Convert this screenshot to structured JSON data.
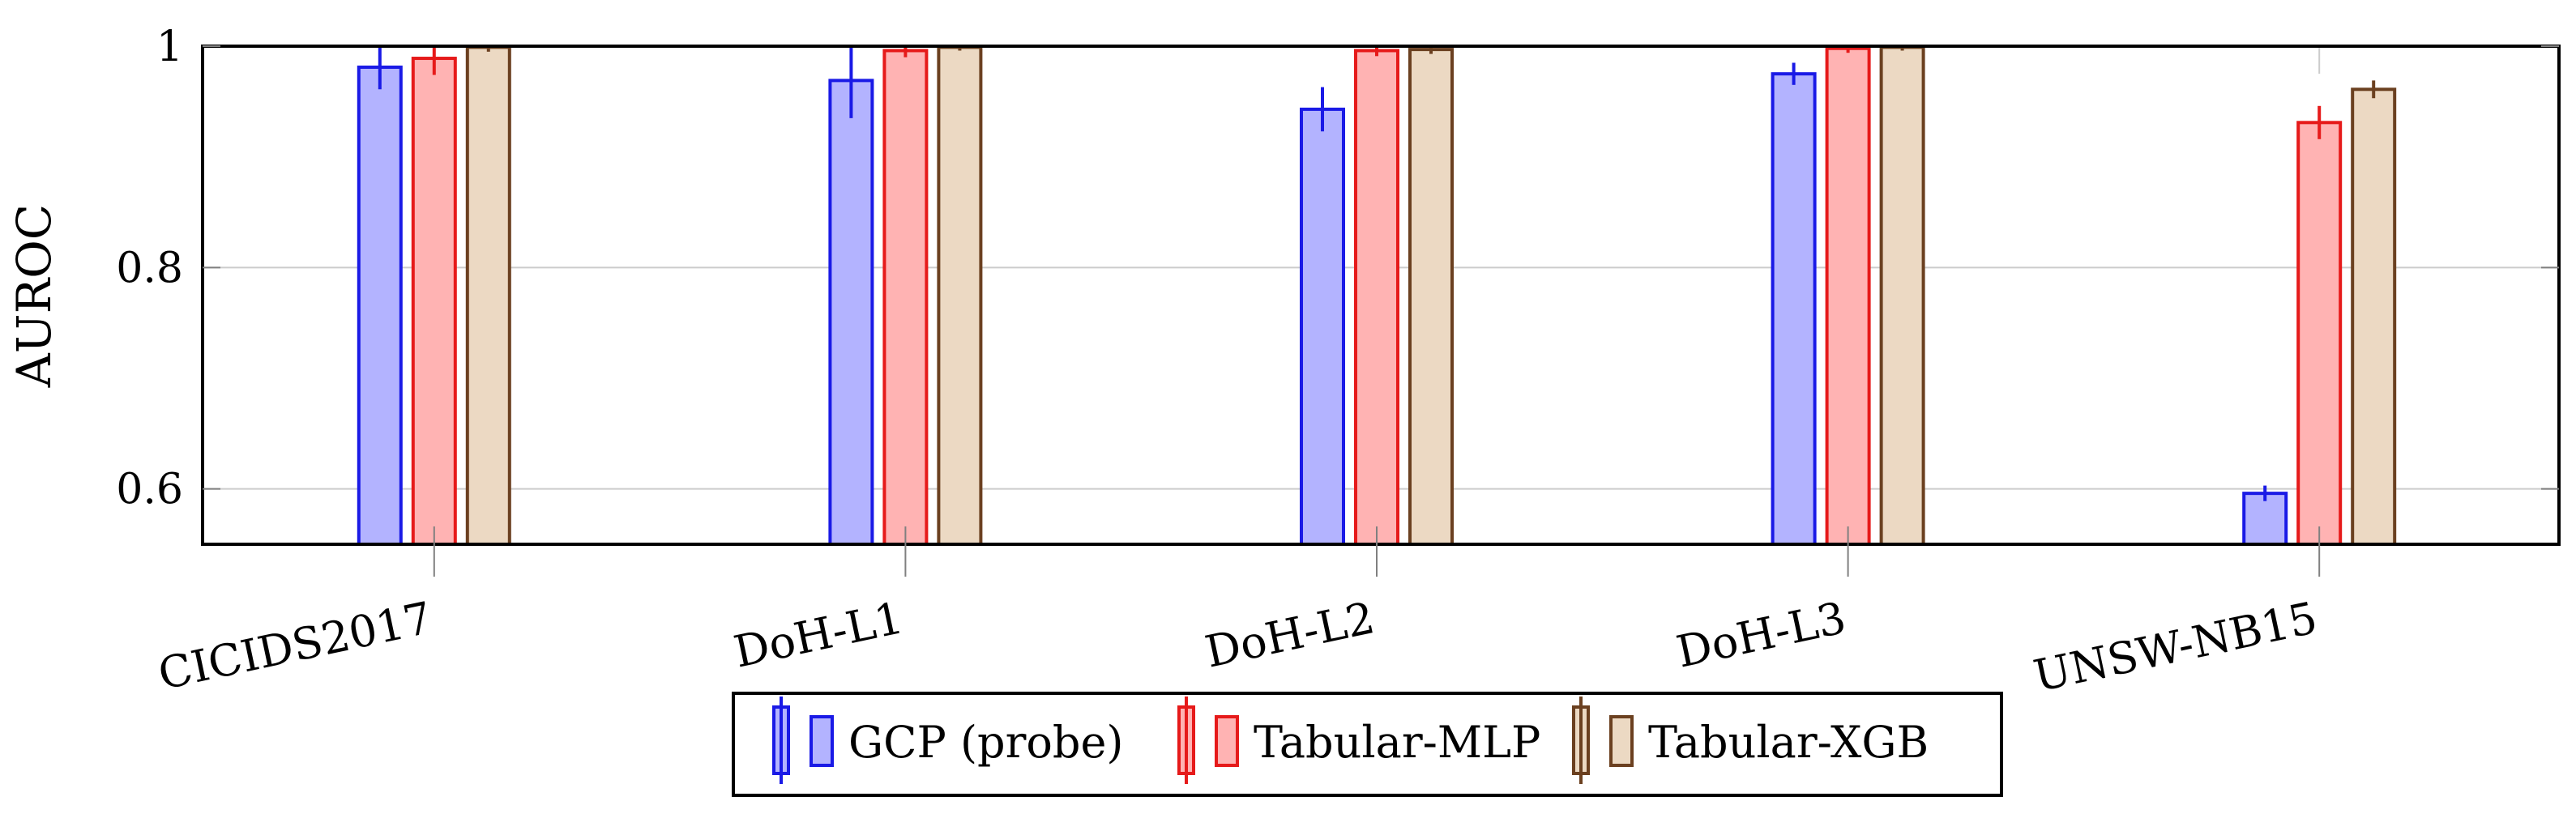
{
  "chart_data": {
    "type": "bar",
    "ylabel": "AUROC",
    "ylim": [
      0.55,
      1.0
    ],
    "yticks": [
      0.6,
      0.8,
      1
    ],
    "ytick_labels": [
      "0.6",
      "0.8",
      "1"
    ],
    "categories": [
      "CICIDS2017",
      "DoH-L1",
      "DoH-L2",
      "DoH-L3",
      "UNSW-NB15"
    ],
    "series": [
      {
        "name": "GCP (probe)",
        "color": "#1a1ae6",
        "fill": "#b3b3ff",
        "values": [
          0.981,
          0.969,
          0.943,
          0.975,
          0.596
        ],
        "errors": [
          0.02,
          0.034,
          0.02,
          0.01,
          0.007
        ]
      },
      {
        "name": "Tabular-MLP",
        "color": "#e61a1a",
        "fill": "#ffb3b3",
        "values": [
          0.989,
          0.996,
          0.996,
          0.998,
          0.931
        ],
        "errors": [
          0.015,
          0.006,
          0.005,
          0.004,
          0.015
        ]
      },
      {
        "name": "Tabular-XGB",
        "color": "#6b4020",
        "fill": "#ecd9c3",
        "values": [
          0.999,
          0.999,
          0.997,
          0.999,
          0.961
        ],
        "errors": [
          0.004,
          0.003,
          0.004,
          0.003,
          0.008
        ]
      }
    ],
    "grid": true,
    "legend_position": "bottom-center"
  }
}
